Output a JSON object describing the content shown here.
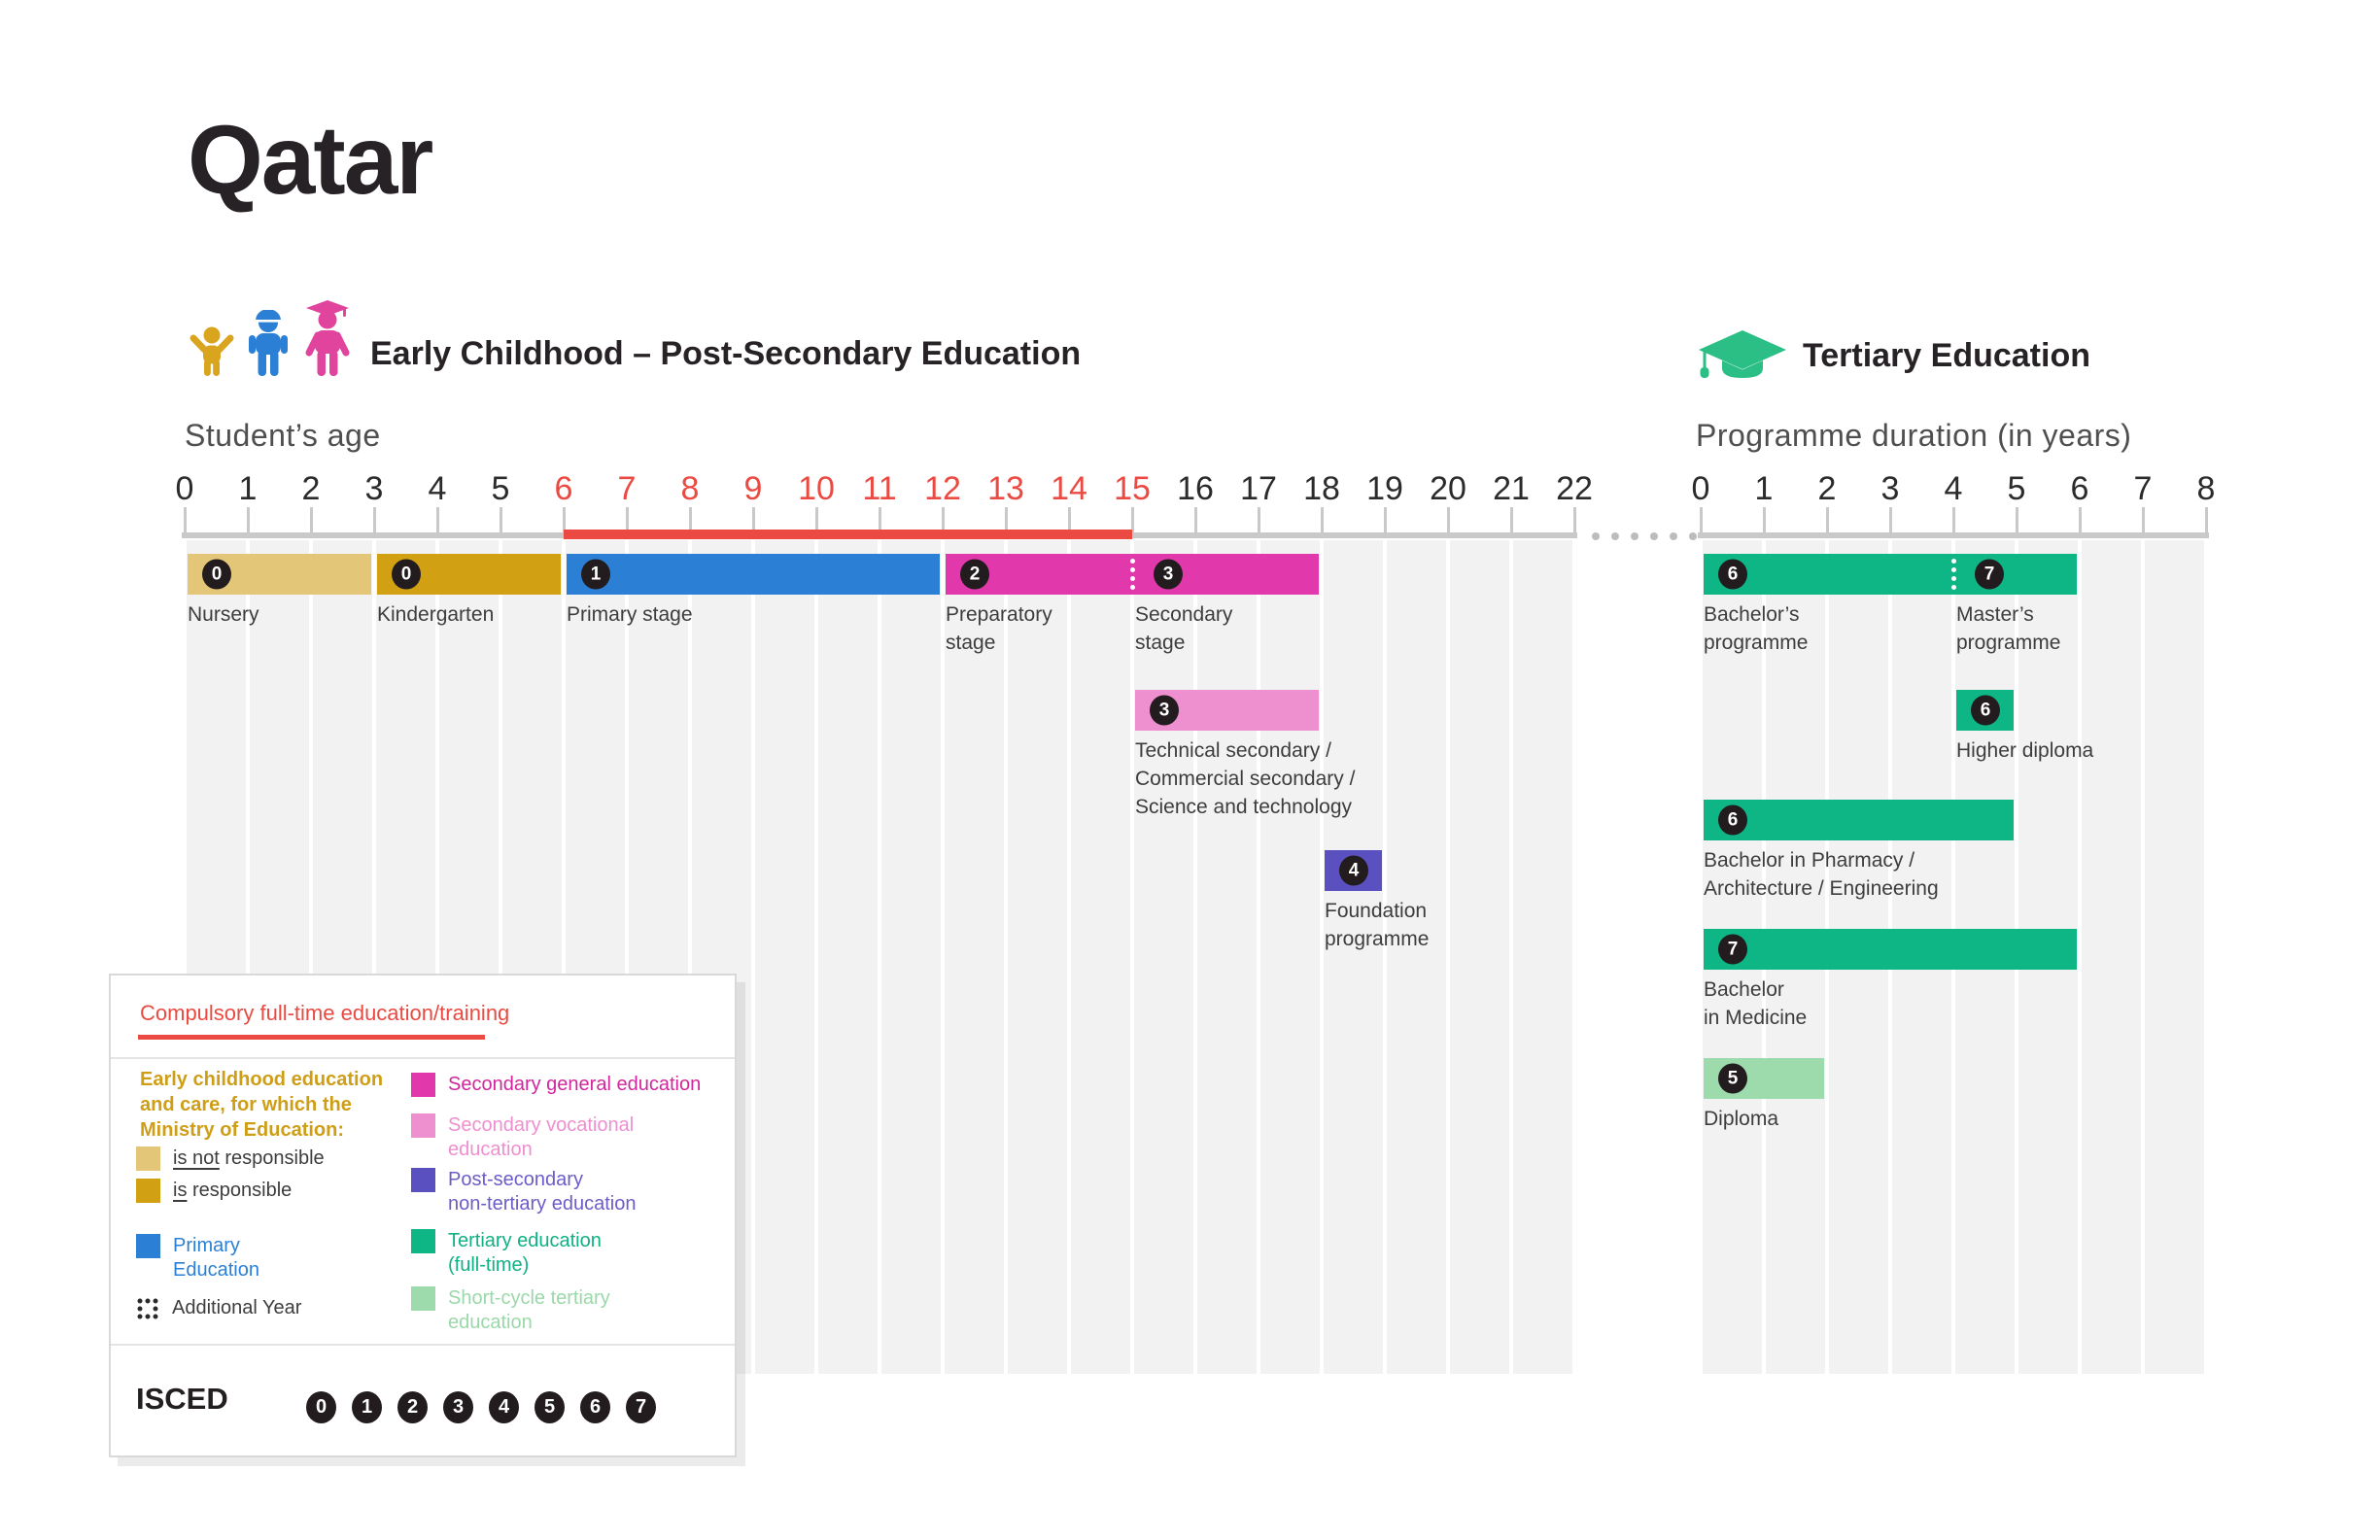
{
  "title": "Qatar",
  "colors": {
    "tan": "#e4c678",
    "gold": "#d2a013",
    "blue": "#2b80d5",
    "magenta": "#e138ab",
    "pink": "#ee8fd0",
    "purple": "#5b50c0",
    "green": "#0eb585",
    "lightgreen": "#9ddbac",
    "red": "#ea4a41",
    "badge": "#221c1e",
    "gold_text": "#cf9e17",
    "magenta_text": "#d2269e",
    "pink_text": "#ee8fd0",
    "purple_text": "#6b5cc9",
    "green_text": "#10b183",
    "lightgreen_text": "#9ad8a9",
    "icon_gold": "#d9a41e",
    "icon_blue": "#2b80d5",
    "icon_pink": "#e0449d",
    "icon_cap_green": "#2cbf85"
  },
  "left_section": {
    "header": "Early Childhood – Post-Secondary Education",
    "axis_label": "Student’s age",
    "axis": {
      "ticks": [
        0,
        1,
        2,
        3,
        4,
        5,
        6,
        7,
        8,
        9,
        10,
        11,
        12,
        13,
        14,
        15,
        16,
        17,
        18,
        19,
        20,
        21,
        22
      ],
      "compulsory_range": [
        6,
        15
      ]
    },
    "bars": [
      {
        "isced": "0",
        "label": "Nursery",
        "start": 0,
        "end": 3,
        "color": "tan",
        "row": 0
      },
      {
        "isced": "0",
        "label": "Kindergarten",
        "start": 3,
        "end": 6,
        "color": "gold",
        "row": 0
      },
      {
        "isced": "1",
        "label": "Primary stage",
        "start": 6,
        "end": 12,
        "color": "blue",
        "row": 0
      },
      {
        "isced": "2",
        "label": "Preparatory\nstage",
        "start": 12,
        "end": 15,
        "color": "magenta",
        "row": 0,
        "flush": true
      },
      {
        "isced": "3",
        "label": "Secondary\nstage",
        "start": 15,
        "end": 18,
        "color": "magenta",
        "row": 0,
        "dotted": true
      },
      {
        "isced": "3",
        "label": "Technical secondary /\nCommercial secondary /\nScience and technology",
        "start": 15,
        "end": 18,
        "color": "pink",
        "row": 1
      },
      {
        "isced": "4",
        "label": "Foundation\nprogramme",
        "start": 18,
        "end": 19,
        "color": "purple",
        "row": 2
      }
    ]
  },
  "right_section": {
    "header": "Tertiary Education",
    "axis_label": "Programme duration (in years)",
    "axis": {
      "ticks": [
        0,
        1,
        2,
        3,
        4,
        5,
        6,
        7,
        8
      ]
    },
    "bars": [
      {
        "isced": "6",
        "label": "Bachelor’s\nprogramme",
        "start": 0,
        "end": 4,
        "color": "green",
        "row": 0,
        "flush": true
      },
      {
        "isced": "7",
        "label": "Master’s\nprogramme",
        "start": 4,
        "end": 6,
        "color": "green",
        "row": 0,
        "dotted": true
      },
      {
        "isced": "6",
        "label": "Higher diploma",
        "start": 4,
        "end": 5,
        "color": "green",
        "row": 1
      },
      {
        "isced": "6",
        "label": "Bachelor in Pharmacy /\nArchitecture / Engineering",
        "start": 0,
        "end": 5,
        "color": "green",
        "row": 2
      },
      {
        "isced": "7",
        "label": "Bachelor\nin Medicine",
        "start": 0,
        "end": 6,
        "color": "green",
        "row": 3
      },
      {
        "isced": "5",
        "label": "Diploma",
        "start": 0,
        "end": 2,
        "color": "lightgreen",
        "row": 4
      }
    ]
  },
  "legend": {
    "compulsory_label": "Compulsory full-time education/training",
    "early_childhood_note": "Early childhood education\nand care, for which the\nMinistry of Education:",
    "items_left": [
      {
        "swatch": "tan",
        "underline": "is not",
        "rest": " responsible"
      },
      {
        "swatch": "gold",
        "underline": "is",
        "rest": " responsible"
      },
      {
        "swatch": "blue",
        "label": "Primary\nEducation"
      },
      {
        "swatch": "dotted",
        "label": "Additional Year"
      }
    ],
    "items_right": [
      {
        "swatch": "magenta",
        "label": "Secondary general education"
      },
      {
        "swatch": "pink",
        "label": "Secondary vocational\neducation"
      },
      {
        "swatch": "purple",
        "label": "Post-secondary\nnon-tertiary education"
      },
      {
        "swatch": "green",
        "label": "Tertiary education\n(full-time)"
      },
      {
        "swatch": "lightgreen",
        "label": "Short-cycle tertiary\neducation"
      }
    ],
    "isced_label": "ISCED",
    "isced_levels": [
      "0",
      "1",
      "2",
      "3",
      "4",
      "5",
      "6",
      "7"
    ]
  },
  "chart_data": [
    {
      "type": "bar",
      "title": "Early Childhood – Post-Secondary Education",
      "xlabel": "Student’s age",
      "xlim": [
        0,
        22
      ],
      "compulsory_age_range": [
        6,
        15
      ],
      "bars": [
        {
          "label": "Nursery",
          "isced": 0,
          "start_age": 0,
          "end_age": 3
        },
        {
          "label": "Kindergarten",
          "isced": 0,
          "start_age": 3,
          "end_age": 6
        },
        {
          "label": "Primary stage",
          "isced": 1,
          "start_age": 6,
          "end_age": 12
        },
        {
          "label": "Preparatory stage",
          "isced": 2,
          "start_age": 12,
          "end_age": 15
        },
        {
          "label": "Secondary stage",
          "isced": 3,
          "start_age": 15,
          "end_age": 18
        },
        {
          "label": "Technical secondary / Commercial secondary / Science and technology",
          "isced": 3,
          "start_age": 15,
          "end_age": 18
        },
        {
          "label": "Foundation programme",
          "isced": 4,
          "start_age": 18,
          "end_age": 19
        }
      ]
    },
    {
      "type": "bar",
      "title": "Tertiary Education",
      "xlabel": "Programme duration (in years)",
      "xlim": [
        0,
        8
      ],
      "bars": [
        {
          "label": "Bachelor’s programme",
          "isced": 6,
          "start": 0,
          "end": 4
        },
        {
          "label": "Master’s programme",
          "isced": 7,
          "start": 4,
          "end": 6
        },
        {
          "label": "Higher diploma",
          "isced": 6,
          "start": 4,
          "end": 5
        },
        {
          "label": "Bachelor in Pharmacy / Architecture / Engineering",
          "isced": 6,
          "start": 0,
          "end": 5
        },
        {
          "label": "Bachelor in Medicine",
          "isced": 7,
          "start": 0,
          "end": 6
        },
        {
          "label": "Diploma",
          "isced": 5,
          "start": 0,
          "end": 2
        }
      ]
    }
  ]
}
